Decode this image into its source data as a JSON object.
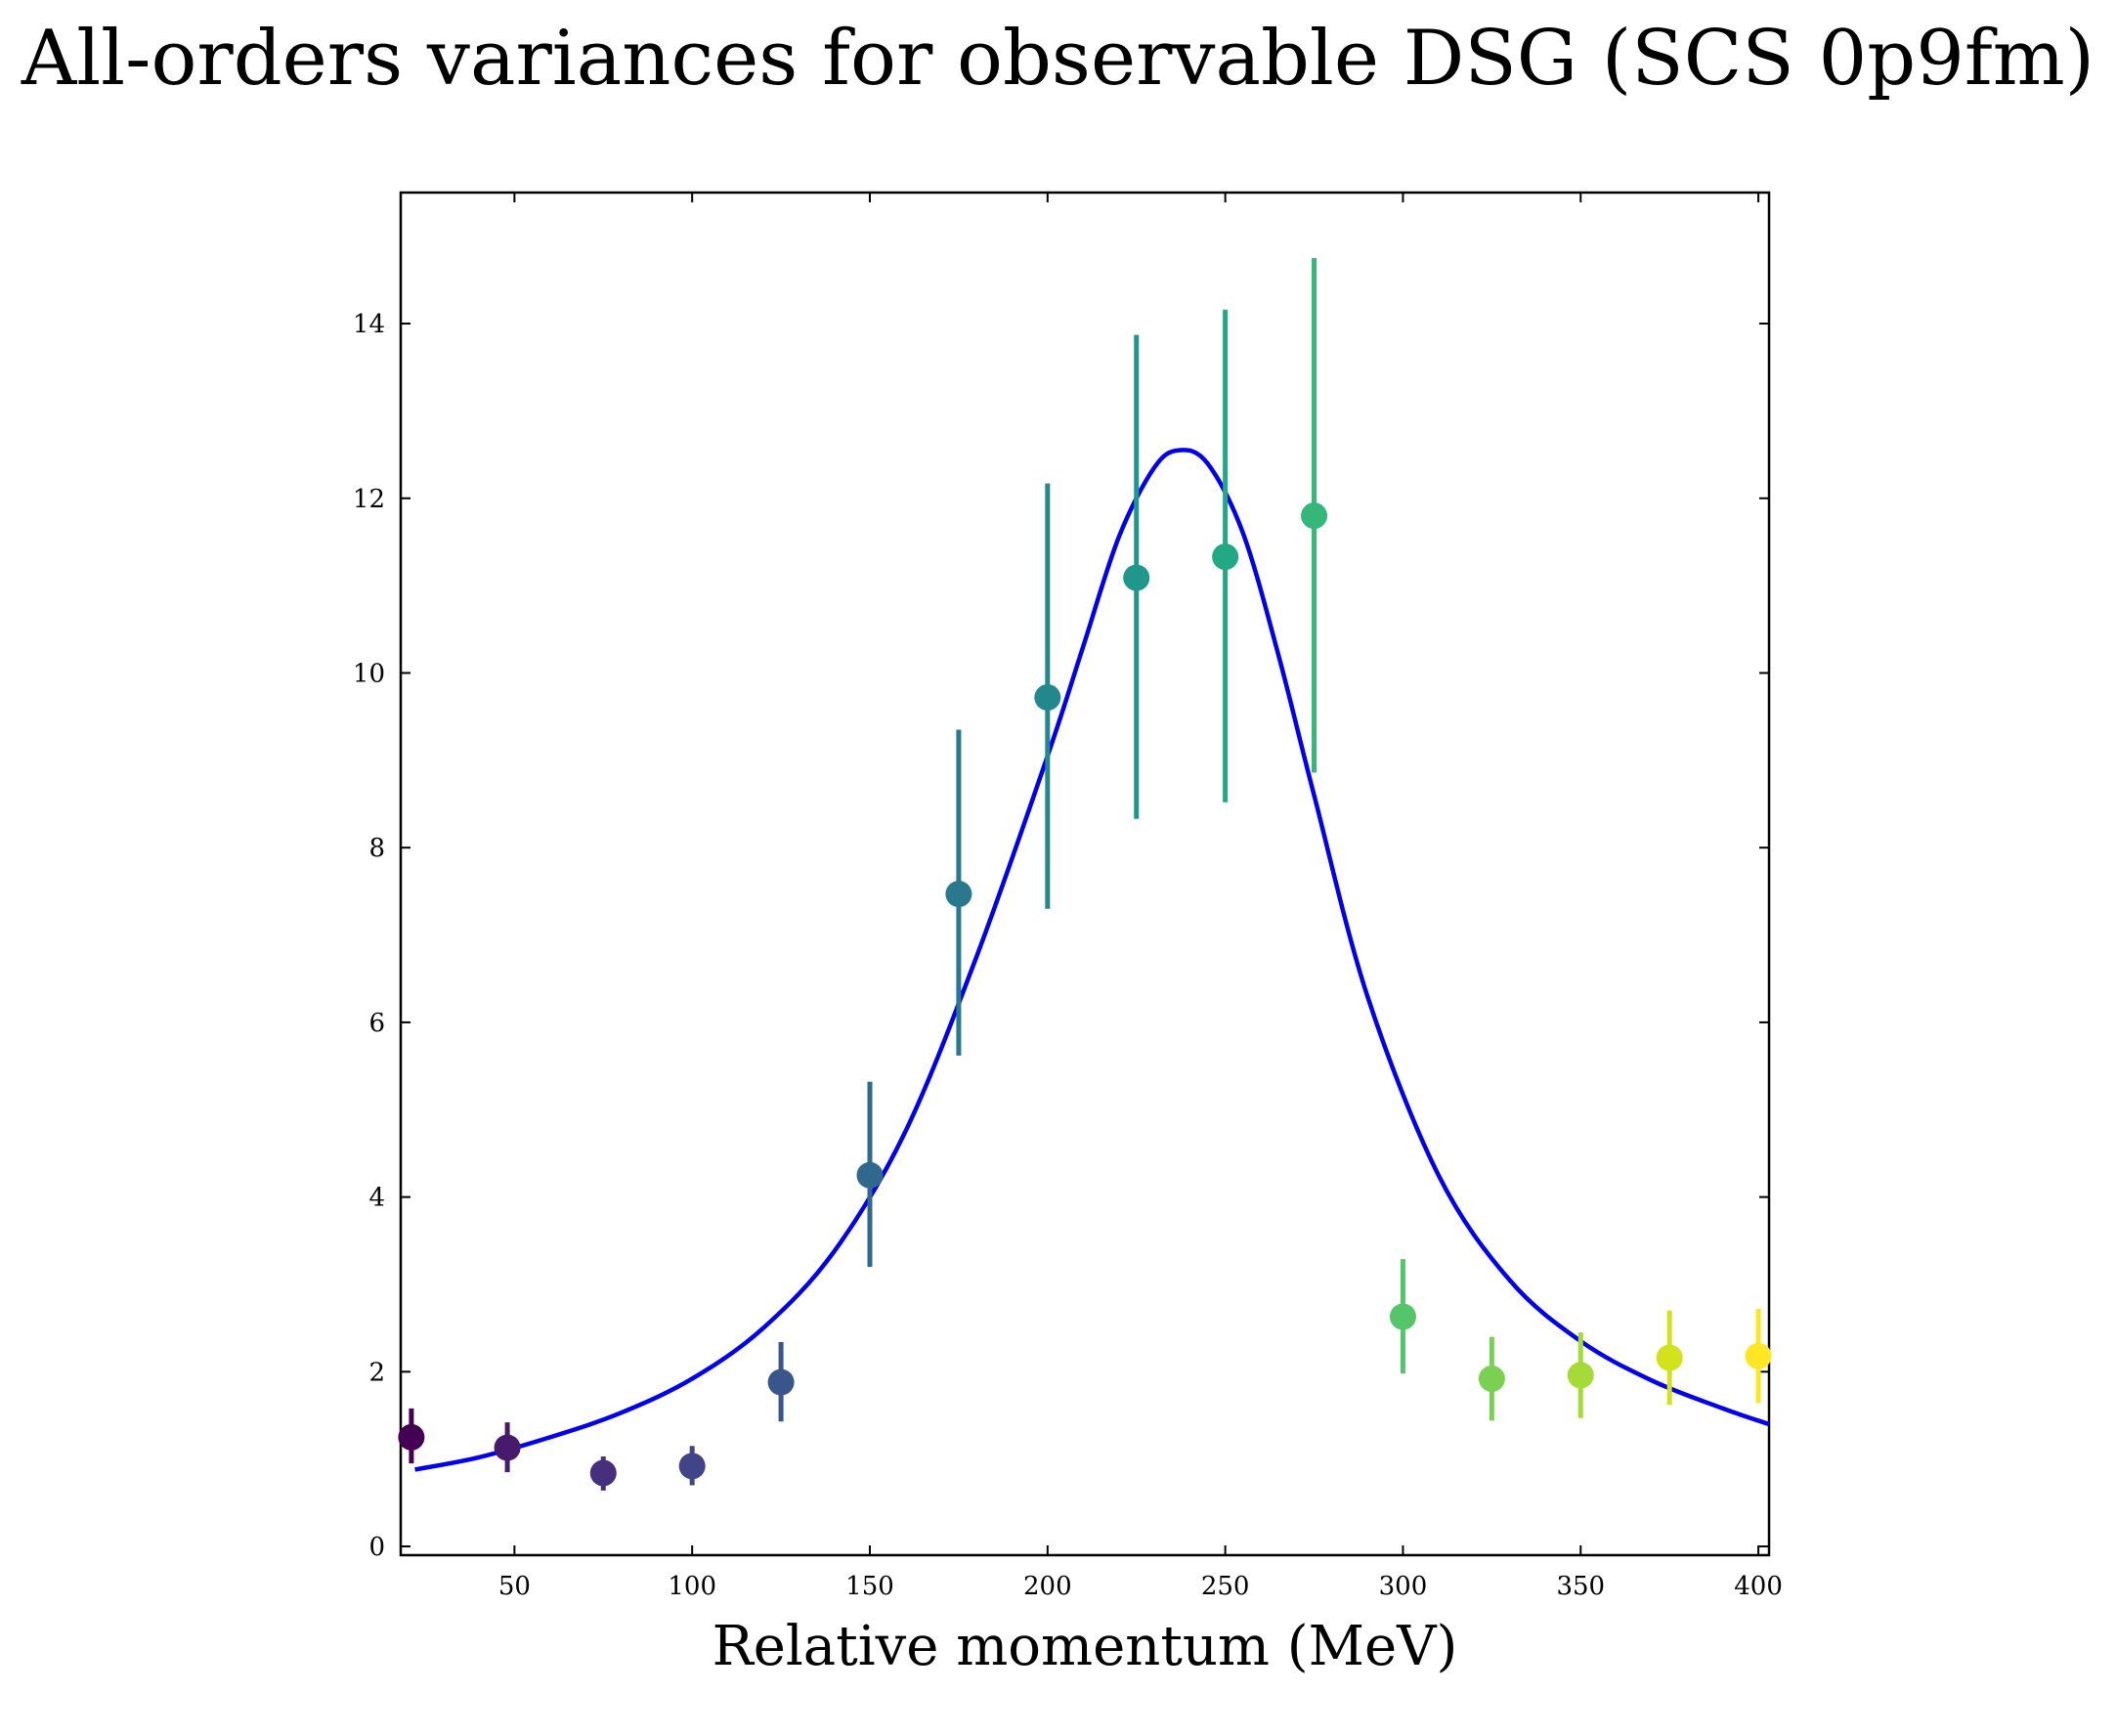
{
  "chart_data": {
    "type": "scatter",
    "title": "All-orders variances for observable DSG (SCS 0p9fm)",
    "xlabel": "Relative momentum (MeV)",
    "ylabel": "",
    "xlim": [
      18,
      403
    ],
    "ylim": [
      -0.1,
      15.5
    ],
    "xticks": [
      50,
      100,
      150,
      200,
      250,
      300,
      350,
      400
    ],
    "yticks": [
      0,
      2,
      4,
      6,
      8,
      10,
      12,
      14
    ],
    "grid": false,
    "points": [
      {
        "x": 21,
        "y": 1.25,
        "ylo": 0.95,
        "yhi": 1.58,
        "color": "#440154"
      },
      {
        "x": 48,
        "y": 1.13,
        "ylo": 0.85,
        "yhi": 1.42,
        "color": "#481a6c"
      },
      {
        "x": 75,
        "y": 0.84,
        "ylo": 0.64,
        "yhi": 1.03,
        "color": "#472f7d"
      },
      {
        "x": 100,
        "y": 0.92,
        "ylo": 0.7,
        "yhi": 1.15,
        "color": "#414487"
      },
      {
        "x": 125,
        "y": 1.88,
        "ylo": 1.43,
        "yhi": 2.34,
        "color": "#39568c"
      },
      {
        "x": 150,
        "y": 4.25,
        "ylo": 3.2,
        "yhi": 5.32,
        "color": "#31688e"
      },
      {
        "x": 175,
        "y": 7.47,
        "ylo": 5.62,
        "yhi": 9.35,
        "color": "#2a788e"
      },
      {
        "x": 200,
        "y": 9.72,
        "ylo": 7.3,
        "yhi": 12.17,
        "color": "#23888e"
      },
      {
        "x": 225,
        "y": 11.09,
        "ylo": 8.33,
        "yhi": 13.87,
        "color": "#1f988b"
      },
      {
        "x": 250,
        "y": 11.33,
        "ylo": 8.52,
        "yhi": 14.16,
        "color": "#22a884"
      },
      {
        "x": 275,
        "y": 11.8,
        "ylo": 8.86,
        "yhi": 14.75,
        "color": "#35b779"
      },
      {
        "x": 300,
        "y": 2.63,
        "ylo": 1.98,
        "yhi": 3.29,
        "color": "#54c568"
      },
      {
        "x": 325,
        "y": 1.92,
        "ylo": 1.44,
        "yhi": 2.4,
        "color": "#7ad151"
      },
      {
        "x": 350,
        "y": 1.96,
        "ylo": 1.47,
        "yhi": 2.45,
        "color": "#a5db36"
      },
      {
        "x": 375,
        "y": 2.16,
        "ylo": 1.62,
        "yhi": 2.7,
        "color": "#d2e21b"
      },
      {
        "x": 400,
        "y": 2.18,
        "ylo": 1.64,
        "yhi": 2.72,
        "color": "#fde725"
      }
    ],
    "curve": {
      "color": "#0000ee",
      "x": [
        22,
        40,
        60,
        80,
        100,
        120,
        140,
        160,
        180,
        200,
        210,
        220,
        230,
        237,
        245,
        255,
        265,
        275,
        290,
        310,
        330,
        350,
        370,
        390,
        403
      ],
      "y": [
        0.88,
        1.02,
        1.25,
        1.53,
        1.92,
        2.5,
        3.38,
        4.75,
        6.75,
        9.05,
        10.3,
        11.55,
        12.35,
        12.55,
        12.4,
        11.6,
        10.2,
        8.6,
        6.3,
        4.25,
        3.05,
        2.35,
        1.9,
        1.58,
        1.4
      ]
    }
  }
}
